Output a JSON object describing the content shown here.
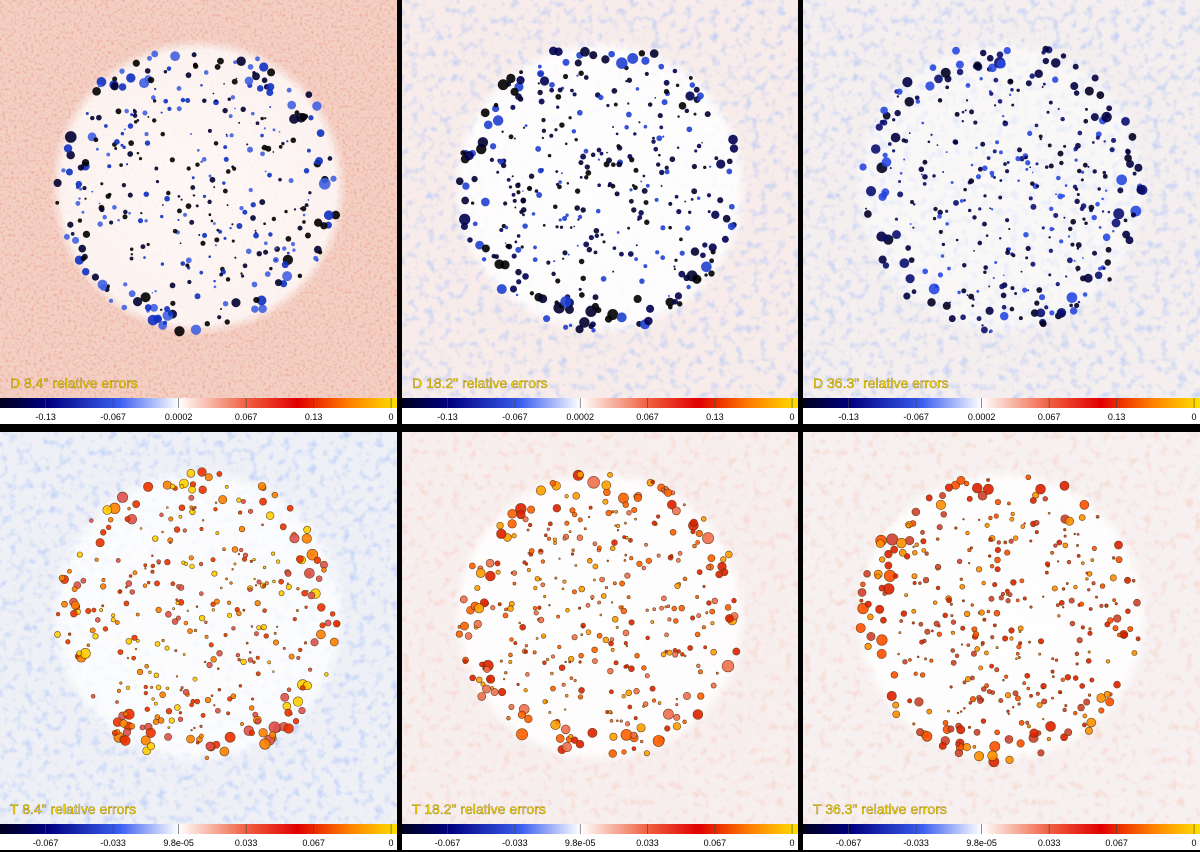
{
  "panels": [
    {
      "label": "D 8.4\" relative errors",
      "colorbar": [
        "-0.13",
        "-0.067",
        "0.0002",
        "0.067",
        "0.13",
        "0"
      ]
    },
    {
      "label": "D 18.2\" relative errors",
      "colorbar": [
        "-0.13",
        "-0.067",
        "0.0002",
        "0.067",
        "0.13",
        "0"
      ]
    },
    {
      "label": "D 36.3\" relative errors",
      "colorbar": [
        "-0.13",
        "-0.067",
        "0.0002",
        "0.067",
        "0.13",
        "0"
      ]
    },
    {
      "label": "T 8.4\" relative errors",
      "colorbar": [
        "-0.067",
        "-0.033",
        "9.8e-05",
        "0.033",
        "0.067",
        "0"
      ]
    },
    {
      "label": "T 18.2\" relative errors",
      "colorbar": [
        "-0.067",
        "-0.033",
        "9.8e-05",
        "0.033",
        "0.067",
        "0"
      ]
    },
    {
      "label": "T 36.3\" relative errors",
      "colorbar": [
        "-0.067",
        "-0.033",
        "9.8e-05",
        "0.033",
        "0.067",
        "0"
      ]
    }
  ]
}
